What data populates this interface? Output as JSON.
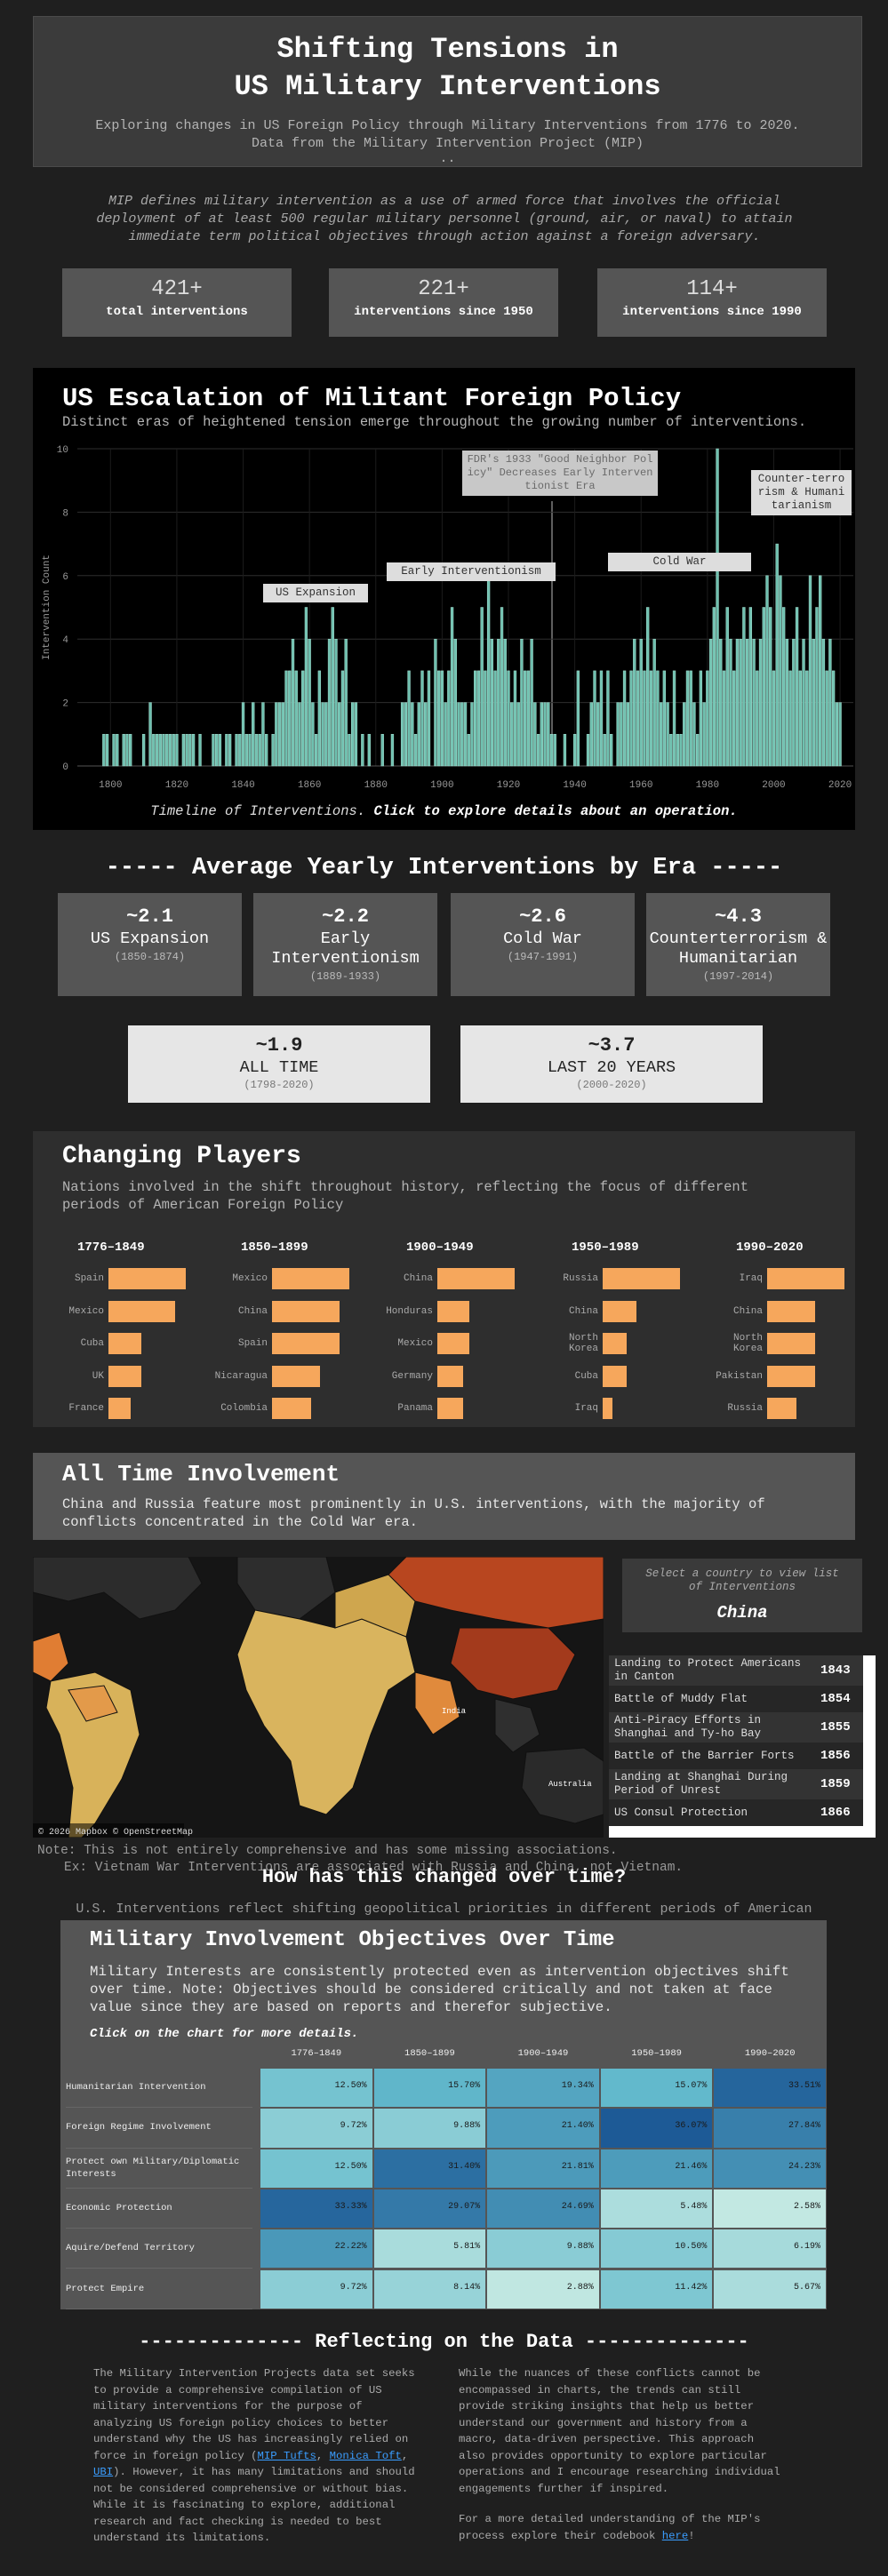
{
  "header": {
    "title_lines": [
      "Shifting Tensions in",
      "US Military Interventions"
    ],
    "subtitle_lines": [
      "Exploring changes in US Foreign Policy through Military Interventions from 1776 to 2020.",
      "Data from the Military Intervention Project (MIP)"
    ],
    "dots": ".."
  },
  "definition": "MIP defines military intervention as a use of armed force that involves the official deployment of at least 500 regular military personnel (ground, air, or naval) to attain immediate term political objectives through action against a foreign adversary.",
  "stats": [
    {
      "value": "421+",
      "label": "total interventions"
    },
    {
      "value": "221+",
      "label": "interventions since 1950"
    },
    {
      "value": "114+",
      "label": "interventions since 1990"
    }
  ],
  "eras": {
    "heading": "----- Average Yearly Interventions by Era -----",
    "boxes": [
      {
        "value": "~2.1",
        "name": "US Expansion",
        "years": "(1850-1874)"
      },
      {
        "value": "~2.2",
        "name": "Early Interventionism",
        "years": "(1889-1933)"
      },
      {
        "value": "~2.6",
        "name": "Cold War",
        "years": "(1947-1991)"
      },
      {
        "value": "~4.3",
        "name": "Counterterrorism & Humanitarian",
        "years": "(1997-2014)"
      }
    ],
    "overall": [
      {
        "value": "~1.9",
        "name": "ALL TIME",
        "years": "(1798-2020)"
      },
      {
        "value": "~3.7",
        "name": "LAST 20 YEARS",
        "years": "(2000-2020)"
      }
    ]
  },
  "players": {
    "title": "Changing Players",
    "description": "Nations involved in the shift throughout history, reflecting the focus of different periods of American Foreign Policy"
  },
  "involvement": {
    "title": "All Time Involvement",
    "description": "China and Russia feature most prominently in U.S. interventions, with the majority of conflicts concentrated in the Cold War era."
  },
  "map": {
    "prompt": "Select a country to view list of Interventions",
    "selected": "China",
    "attribution": "© 2026 Mapbox © OpenStreetMap",
    "labels": [
      "India",
      "Australia"
    ],
    "list": [
      {
        "name": "Landing to Protect Americans in Canton",
        "year": "1843"
      },
      {
        "name": "Battle of Muddy Flat",
        "year": "1854"
      },
      {
        "name": "Anti-Piracy Efforts in Shanghai and Ty-ho Bay",
        "year": "1855"
      },
      {
        "name": "Battle of the Barrier Forts",
        "year": "1856"
      },
      {
        "name": "Landing at Shanghai During Period of Unrest",
        "year": "1859"
      },
      {
        "name": "US Consul Protection",
        "year": "1866"
      }
    ]
  },
  "notes": [
    "Note: This is not entirely comprehensive and has some missing associations.",
    "Ex: Vietnam War Interventions are associated with Russia and China, not Vietnam."
  ],
  "change": {
    "heading": "How has this changed over time?",
    "intro": "U.S. Interventions reflect shifting geopolitical priorities in different periods of American"
  },
  "objectives": {
    "title": "Military Involvement Objectives Over Time",
    "description": "Military Interests are consistently protected even as intervention objectives shift over time. Note: Objectives should be considered critically and not taken at face value since they are based on reports and therefor subjective.",
    "instruction": "Click on the chart for more details."
  },
  "reflect": {
    "heading": "-------------- Reflecting on the Data --------------",
    "left_before": "The Military Intervention Projects data set seeks to provide a comprehensive compilation of US military interventions for the purpose of analyzing US foreign policy choices to better understand why the US has increasingly relied on force in foreign policy (",
    "left_links": [
      "MIP Tufts",
      "Monica Toft",
      "UBI"
    ],
    "left_separator": ", ",
    "left_after": "). However, it has many limitations and should not be considered comprehensive or without bias. While it is fascinating to explore, additional research and fact checking is needed to best understand its limitations.",
    "right": "While the nuances of these conflicts cannot be encompassed in charts, the trends can still provide striking insights that help us better understand our government and history from a macro, data-driven perspective. This approach also provides opportunity to explore particular operations and I encourage researching individual engagements further if inspired.",
    "right2_before": "For a more detailed understanding of the MIP's process explore their codebook ",
    "right2_link": "here",
    "right2_after": "!"
  },
  "chart_data": [
    {
      "type": "bar",
      "title": "US Escalation of Militant Foreign Policy",
      "subtitle": "Distinct eras of heightened tension emerge throughout the growing number of interventions.",
      "y_label": "Intervention Count",
      "caption_italic": "Timeline of Interventions.",
      "caption_bold": "Click to explore details about an operation.",
      "annotations": [
        "US Expansion",
        "Early Interventionism",
        "FDR's 1933 \"Good Neighbor Policy\" Decreases Early Interventionist Era",
        "Cold War",
        "Counter-terrorism & Humanitarianism"
      ],
      "color": "#6fc1b0",
      "grid": true,
      "xlim": [
        1790,
        2024
      ],
      "xticks": [
        1800,
        1820,
        1840,
        1860,
        1880,
        1900,
        1920,
        1940,
        1960,
        1980,
        2000,
        2020
      ],
      "ylim": [
        0,
        10
      ],
      "yticks": [
        0,
        2,
        4,
        6,
        8,
        10
      ],
      "x": [
        1798,
        1799,
        1801,
        1802,
        1804,
        1805,
        1806,
        1810,
        1812,
        1813,
        1814,
        1815,
        1816,
        1817,
        1818,
        1819,
        1820,
        1822,
        1823,
        1824,
        1825,
        1827,
        1831,
        1832,
        1833,
        1835,
        1836,
        1838,
        1839,
        1840,
        1841,
        1842,
        1843,
        1844,
        1845,
        1846,
        1847,
        1849,
        1850,
        1851,
        1852,
        1853,
        1854,
        1855,
        1856,
        1857,
        1858,
        1859,
        1860,
        1861,
        1862,
        1863,
        1864,
        1865,
        1866,
        1867,
        1868,
        1869,
        1870,
        1871,
        1872,
        1873,
        1874,
        1876,
        1878,
        1882,
        1885,
        1888,
        1889,
        1890,
        1891,
        1892,
        1893,
        1894,
        1895,
        1896,
        1898,
        1899,
        1900,
        1901,
        1902,
        1903,
        1904,
        1905,
        1906,
        1907,
        1908,
        1909,
        1910,
        1911,
        1912,
        1913,
        1914,
        1915,
        1916,
        1917,
        1918,
        1919,
        1920,
        1921,
        1922,
        1923,
        1924,
        1925,
        1926,
        1927,
        1928,
        1929,
        1930,
        1931,
        1932,
        1933,
        1934,
        1937,
        1940,
        1941,
        1944,
        1945,
        1946,
        1947,
        1948,
        1949,
        1950,
        1951,
        1953,
        1954,
        1955,
        1956,
        1957,
        1958,
        1959,
        1960,
        1961,
        1962,
        1963,
        1964,
        1965,
        1966,
        1967,
        1968,
        1969,
        1970,
        1971,
        1972,
        1973,
        1974,
        1975,
        1976,
        1977,
        1978,
        1979,
        1980,
        1981,
        1982,
        1983,
        1984,
        1985,
        1986,
        1987,
        1988,
        1989,
        1990,
        1991,
        1992,
        1993,
        1994,
        1995,
        1996,
        1997,
        1998,
        1999,
        2000,
        2001,
        2002,
        2003,
        2004,
        2005,
        2006,
        2007,
        2008,
        2009,
        2010,
        2011,
        2012,
        2013,
        2014,
        2015,
        2016,
        2017,
        2018,
        2019,
        2020
      ],
      "values": [
        1,
        1,
        1,
        1,
        1,
        1,
        1,
        1,
        2,
        1,
        1,
        1,
        1,
        1,
        1,
        1,
        1,
        1,
        1,
        1,
        1,
        1,
        1,
        1,
        1,
        1,
        1,
        1,
        1,
        2,
        1,
        1,
        2,
        1,
        1,
        2,
        1,
        1,
        2,
        2,
        2,
        3,
        3,
        4,
        3,
        2,
        3,
        5,
        4,
        2,
        1,
        3,
        2,
        2,
        4,
        5,
        4,
        2,
        3,
        4,
        1,
        2,
        2,
        1,
        1,
        1,
        1,
        2,
        2,
        3,
        2,
        1,
        2,
        3,
        2,
        3,
        4,
        3,
        3,
        2,
        3,
        5,
        4,
        2,
        2,
        2,
        1,
        2,
        3,
        3,
        5,
        3,
        6,
        4,
        3,
        4,
        5,
        4,
        3,
        2,
        3,
        2,
        4,
        3,
        3,
        4,
        2,
        1,
        2,
        2,
        2,
        1,
        1,
        1,
        1,
        3,
        1,
        2,
        3,
        2,
        3,
        1,
        3,
        1,
        2,
        2,
        3,
        2,
        3,
        4,
        3,
        4,
        3,
        5,
        3,
        4,
        3,
        2,
        3,
        2,
        1,
        3,
        1,
        1,
        2,
        3,
        3,
        2,
        1,
        3,
        2,
        3,
        4,
        5,
        10,
        4,
        3,
        5,
        4,
        3,
        4,
        4,
        5,
        4,
        5,
        4,
        3,
        4,
        5,
        6,
        5,
        3,
        7,
        6,
        5,
        4,
        3,
        4,
        5,
        3,
        4,
        3,
        6,
        4,
        5,
        6,
        4,
        3,
        4,
        3,
        2,
        2
      ]
    },
    {
      "type": "barh",
      "title": "1776–1849",
      "color": "#f6a75c",
      "categories": [
        "Spain",
        "Mexico",
        "Cuba",
        "UK",
        "France"
      ],
      "values": [
        7,
        6,
        3,
        3,
        2
      ]
    },
    {
      "type": "barh",
      "title": "1850–1899",
      "color": "#f6a75c",
      "categories": [
        "Mexico",
        "China",
        "Spain",
        "Nicaragua",
        "Colombia"
      ],
      "values": [
        8,
        7,
        7,
        5,
        4
      ]
    },
    {
      "type": "barh",
      "title": "1900–1949",
      "color": "#f6a75c",
      "categories": [
        "China",
        "Honduras",
        "Mexico",
        "Germany",
        "Panama"
      ],
      "values": [
        12,
        5,
        5,
        4,
        4
      ]
    },
    {
      "type": "barh",
      "title": "1950–1989",
      "color": "#f6a75c",
      "categories": [
        "Russia",
        "China",
        "North Korea",
        "Cuba",
        "Iraq"
      ],
      "values": [
        16,
        7,
        5,
        5,
        2
      ]
    },
    {
      "type": "barh",
      "title": "1990–2020",
      "color": "#f6a75c",
      "categories": [
        "Iraq",
        "China",
        "North Korea",
        "Pakistan",
        "Russia"
      ],
      "values": [
        13,
        8,
        8,
        8,
        5
      ]
    },
    {
      "type": "heatmap",
      "categories": [
        "1776–1849",
        "1850–1899",
        "1900–1949",
        "1950–1989",
        "1990–2020"
      ],
      "series": [
        {
          "name": "Humanitarian Intervention",
          "values": [
            12.5,
            15.7,
            19.34,
            15.07,
            33.51
          ],
          "value_labels": [
            "12.50%",
            "15.70%",
            "19.34%",
            "15.07%",
            "33.51%"
          ]
        },
        {
          "name": "Foreign Regime Involvement",
          "values": [
            9.72,
            9.88,
            21.4,
            36.07,
            27.84
          ],
          "value_labels": [
            "9.72%",
            "9.88%",
            "21.40%",
            "36.07%",
            "27.84%"
          ]
        },
        {
          "name": "Protect own Military/Diplomatic Interests",
          "values": [
            12.5,
            31.4,
            21.81,
            21.46,
            24.23
          ],
          "value_labels": [
            "12.50%",
            "31.40%",
            "21.81%",
            "21.46%",
            "24.23%"
          ]
        },
        {
          "name": "Economic Protection",
          "values": [
            33.33,
            29.07,
            24.69,
            5.48,
            2.58
          ],
          "value_labels": [
            "33.33%",
            "29.07%",
            "24.69%",
            "5.48%",
            "2.58%"
          ]
        },
        {
          "name": "Aquire/Defend Territory",
          "values": [
            22.22,
            5.81,
            9.88,
            10.5,
            6.19
          ],
          "value_labels": [
            "22.22%",
            "5.81%",
            "9.88%",
            "10.50%",
            "6.19%"
          ]
        },
        {
          "name": "Protect Empire",
          "values": [
            9.72,
            8.14,
            2.88,
            11.42,
            5.67
          ],
          "value_labels": [
            "9.72%",
            "8.14%",
            "2.88%",
            "11.42%",
            "5.67%"
          ]
        }
      ]
    }
  ]
}
